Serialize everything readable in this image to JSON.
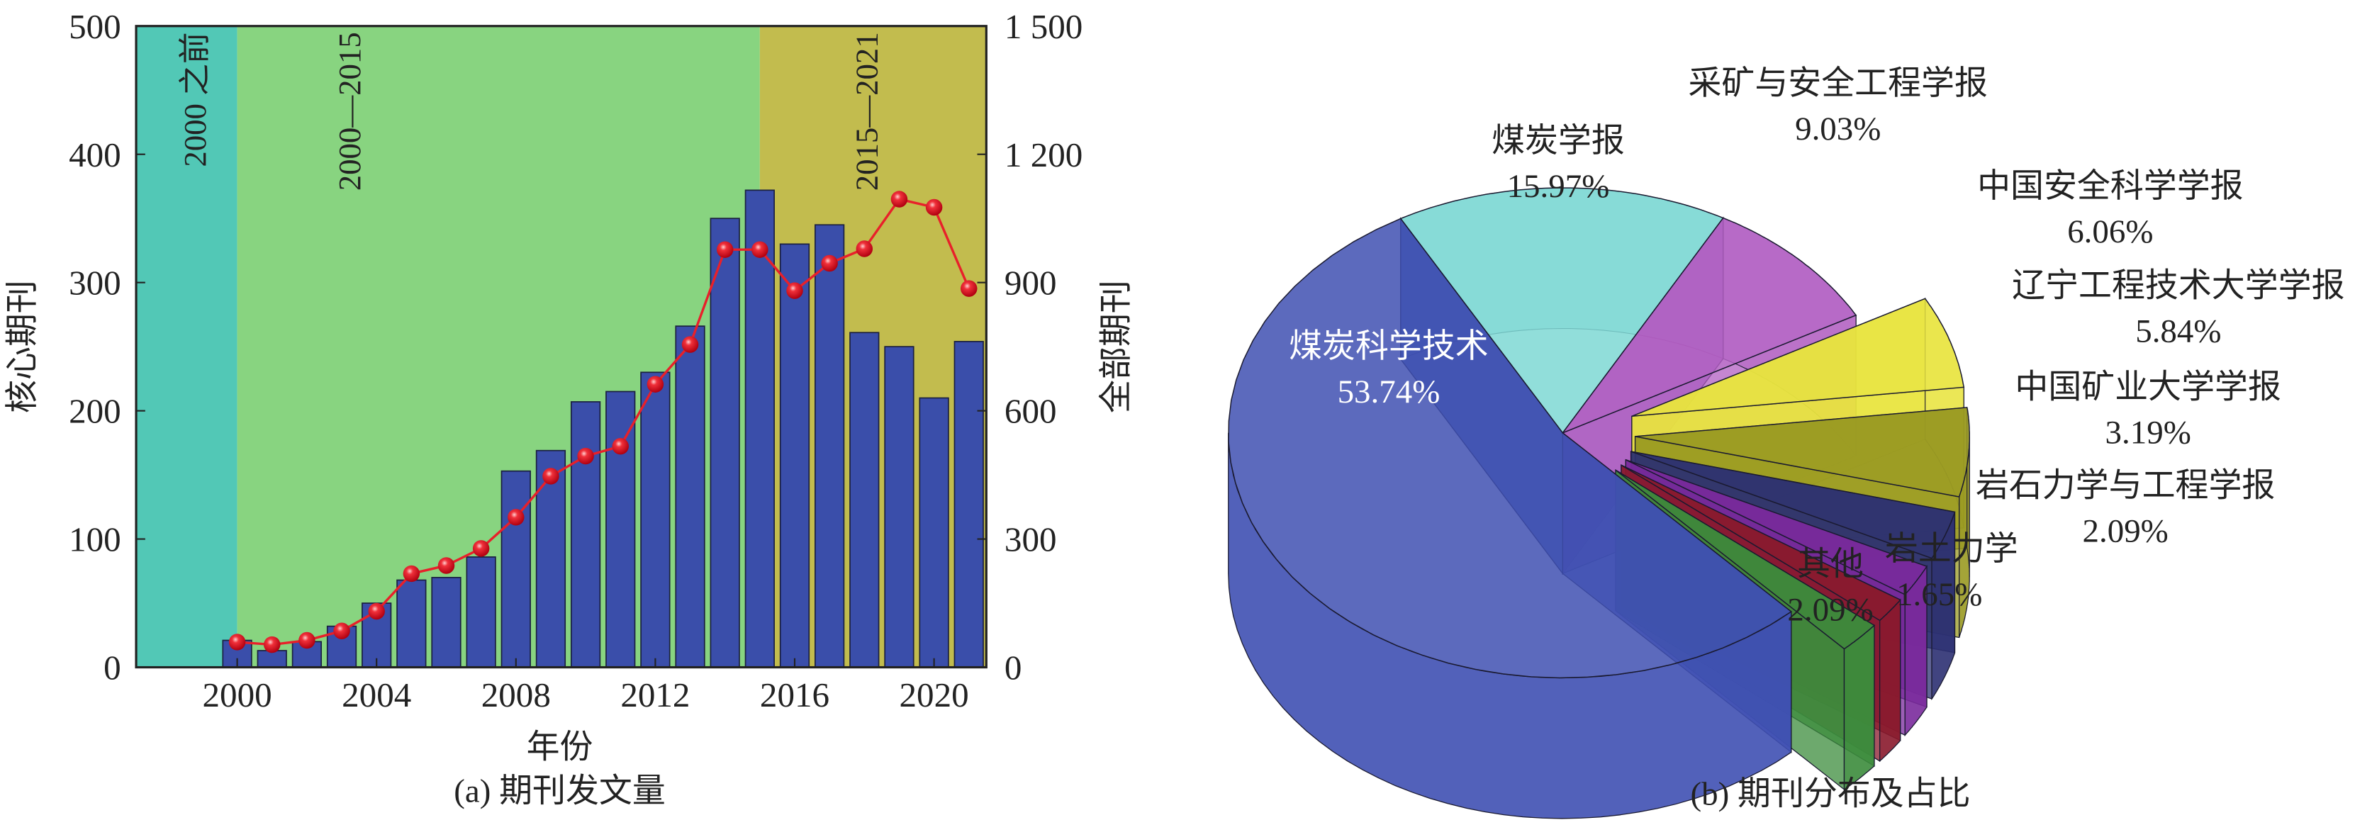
{
  "chart_data": [
    {
      "type": "bar",
      "title": "(a) 期刊发文量",
      "xlabel": "年份",
      "ylabel": "核心期刊",
      "y2label": "全部期刊",
      "ylim": [
        0,
        500
      ],
      "y2lim": [
        0,
        1500
      ],
      "yticks": [
        "0",
        "100",
        "200",
        "300",
        "400",
        "500"
      ],
      "y2ticks": [
        "0",
        "300",
        "600",
        "900",
        "1 200",
        "1 500"
      ],
      "xticks": [
        "2000",
        "2004",
        "2008",
        "2012",
        "2016",
        "2020"
      ],
      "periods": [
        {
          "label": "2000 之前",
          "from": 1997,
          "to": 2000,
          "color": "#52C8B6"
        },
        {
          "label": "2000—2015",
          "from": 2000,
          "to": 2015,
          "color": "#88D480"
        },
        {
          "label": "2015—2021",
          "from": 2015,
          "to": 2021.5,
          "color": "#C2BC4E"
        }
      ],
      "x": [
        2000,
        2001,
        2002,
        2003,
        2004,
        2005,
        2006,
        2007,
        2008,
        2009,
        2010,
        2011,
        2012,
        2013,
        2014,
        2015,
        2016,
        2017,
        2018,
        2019,
        2020,
        2021
      ],
      "series": [
        {
          "name": "核心期刊",
          "type": "bar",
          "axis": "left",
          "color": "#3A4EAA",
          "values": [
            21,
            13,
            20,
            32,
            50,
            68,
            70,
            86,
            153,
            169,
            207,
            215,
            230,
            266,
            350,
            372,
            330,
            345,
            261,
            250,
            210,
            254
          ]
        },
        {
          "name": "全部期刊",
          "type": "line",
          "axis": "right",
          "color": "#E8202A",
          "values": [
            59,
            53,
            63,
            85,
            131,
            219,
            238,
            278,
            351,
            447,
            494,
            517,
            662,
            755,
            977,
            977,
            881,
            945,
            979,
            1095,
            1076,
            886
          ]
        }
      ]
    },
    {
      "type": "pie",
      "title": "(b) 期刊分布及占比",
      "slices": [
        {
          "label": "煤炭学报",
          "value": 15.97,
          "text": "15.97%",
          "color": "#7ED8D4"
        },
        {
          "label": "采矿与安全工程学报",
          "value": 9.03,
          "text": "9.03%",
          "color": "#B25EC2"
        },
        {
          "label": "中国安全科学学报",
          "value": 6.06,
          "text": "6.06%",
          "color": "#E8E43E"
        },
        {
          "label": "辽宁工程技术大学学报",
          "value": 5.84,
          "text": "5.84%",
          "color": "#9A9A22"
        },
        {
          "label": "中国矿业大学学报",
          "value": 3.19,
          "text": "3.19%",
          "color": "#2C3072"
        },
        {
          "label": "岩石力学与工程学报",
          "value": 2.09,
          "text": "2.09%",
          "color": "#7A2A9C"
        },
        {
          "label": "岩土力学",
          "value": 1.65,
          "text": "1.65%",
          "color": "#8A1A2C"
        },
        {
          "label": "其他",
          "value": 2.09,
          "text": "2.09%",
          "color": "#3C8C3C"
        },
        {
          "label": "煤炭科学技术",
          "value": 53.74,
          "text": "53.74%",
          "color": "#3F50B2"
        }
      ]
    }
  ]
}
